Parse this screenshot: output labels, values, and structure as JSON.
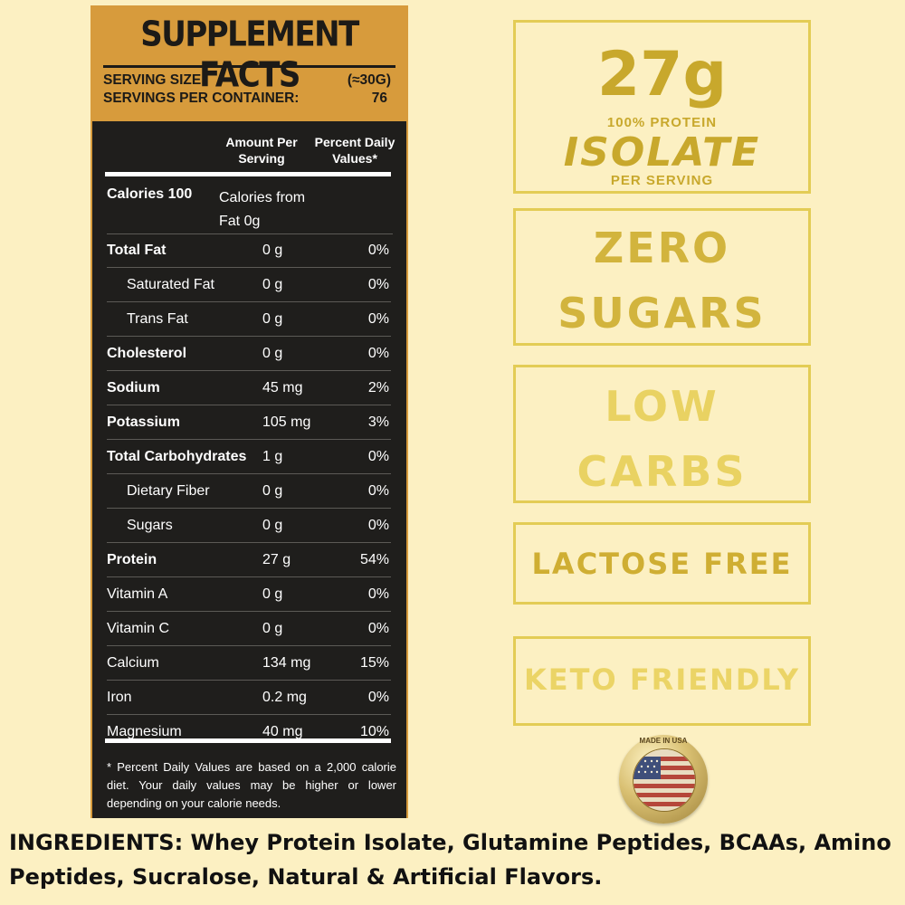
{
  "facts": {
    "title": "SUPPLEMENT FACTS",
    "serving_size_label": "SERVING SIZE:",
    "serving_size_value": "(≈30G)",
    "servings_label": "SERVINGS PER CONTAINER:",
    "servings_value": "76",
    "col_amount": "Amount Per Serving",
    "col_pdv": "Percent Daily Values*",
    "calories_label": "Calories 100",
    "calories_from_fat": "Calories from Fat 0g",
    "rows": [
      {
        "name": "Total Fat",
        "amount": "0 g",
        "pdv": "0%"
      },
      {
        "name": "Saturated Fat",
        "amount": "0 g",
        "pdv": "0%"
      },
      {
        "name": "Trans Fat",
        "amount": "0 g",
        "pdv": "0%"
      },
      {
        "name": "Cholesterol",
        "amount": "0 g",
        "pdv": "0%"
      },
      {
        "name": "Sodium",
        "amount": "45 mg",
        "pdv": "2%"
      },
      {
        "name": "Potassium",
        "amount": "105 mg",
        "pdv": "3%"
      },
      {
        "name": "Total Carbohydrates",
        "amount": "1 g",
        "pdv": "0%"
      },
      {
        "name": "Dietary Fiber",
        "amount": "0 g",
        "pdv": "0%"
      },
      {
        "name": "Sugars",
        "amount": "0 g",
        "pdv": "0%"
      },
      {
        "name": "Protein",
        "amount": "27 g",
        "pdv": "54%"
      },
      {
        "name": "Vitamin A",
        "amount": "0 g",
        "pdv": "0%"
      },
      {
        "name": "Vitamin C",
        "amount": "0 g",
        "pdv": "0%"
      },
      {
        "name": "Calcium",
        "amount": "134 mg",
        "pdv": "15%"
      },
      {
        "name": "Iron",
        "amount": "0.2 mg",
        "pdv": "0%"
      },
      {
        "name": "Magnesium",
        "amount": "40 mg",
        "pdv": "10%"
      }
    ],
    "footnote": "* Percent Daily Values are based on a 2,000 calorie diet. Your daily values may be higher or lower depending on your calorie needs."
  },
  "badges": {
    "protein_amount": "27g",
    "protein_line": "100% PROTEIN",
    "isolate": "ISOLATE",
    "per_serving": "PER SERVING",
    "zero": "ZERO",
    "sugars": "SUGARS",
    "low": "LOW",
    "carbs": "CARBS",
    "lactose": "LACTOSE FREE",
    "keto": "KETO FRIENDLY"
  },
  "seal": {
    "text": "MADE IN USA",
    "icon": "us-flag-seal-icon"
  },
  "ingredients": "INGREDIENTS: Whey Protein Isolate, Glutamine Peptides, BCAAs, Amino Peptides, Sucralose, Natural & Artificial Flavors.",
  "colors": {
    "background": "#fcf0c2",
    "panel_orange": "#d79b3c",
    "panel_dark": "#1f1e1c",
    "badge_gold": "#e3cc55"
  }
}
